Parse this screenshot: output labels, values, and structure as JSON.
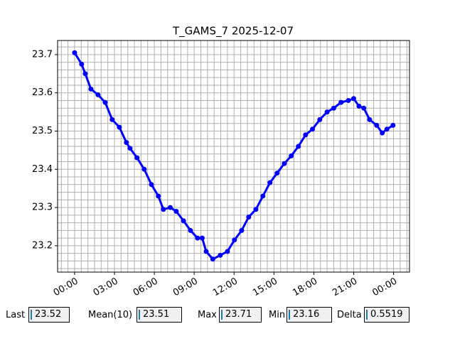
{
  "chart_data": {
    "type": "line",
    "title": "T_GAMS_7 2025-12-07",
    "x": [
      0,
      0.53,
      0.8,
      1.23,
      1.76,
      2.3,
      2.83,
      3.37,
      3.9,
      4.17,
      4.7,
      5.24,
      5.78,
      6.3,
      6.68,
      7.2,
      7.65,
      8.2,
      8.72,
      9.25,
      9.6,
      9.9,
      10.4,
      10.96,
      11.5,
      12.03,
      12.57,
      13.1,
      13.64,
      14.17,
      14.7,
      15.24,
      15.78,
      16.3,
      16.84,
      17.38,
      17.9,
      18.45,
      19,
      19.5,
      20.05,
      20.6,
      21,
      21.4,
      21.76,
      22.2,
      22.73,
      23.15,
      23.5,
      23.96
    ],
    "series": [
      {
        "name": "T_GAMS_7",
        "color": "#0000ff",
        "values": [
          23.705,
          23.675,
          23.65,
          23.61,
          23.595,
          23.575,
          23.53,
          23.51,
          23.47,
          23.455,
          23.43,
          23.4,
          23.36,
          23.33,
          23.295,
          23.3,
          23.29,
          23.265,
          23.24,
          23.22,
          23.22,
          23.185,
          23.165,
          23.175,
          23.185,
          23.215,
          23.24,
          23.275,
          23.295,
          23.33,
          23.365,
          23.39,
          23.415,
          23.435,
          23.46,
          23.49,
          23.505,
          23.53,
          23.55,
          23.56,
          23.575,
          23.58,
          23.585,
          23.565,
          23.56,
          23.53,
          23.515,
          23.495,
          23.505,
          23.515
        ]
      }
    ],
    "xlim": [
      -1.28,
      25.2
    ],
    "ylim": [
      23.131,
      23.737
    ],
    "xticks": [
      {
        "value": 0,
        "label": "00:00"
      },
      {
        "value": 3,
        "label": "03:00"
      },
      {
        "value": 6,
        "label": "06:00"
      },
      {
        "value": 9,
        "label": "09:00"
      },
      {
        "value": 12,
        "label": "12:00"
      },
      {
        "value": 15,
        "label": "15:00"
      },
      {
        "value": 18,
        "label": "18:00"
      },
      {
        "value": 21,
        "label": "21:00"
      },
      {
        "value": 24,
        "label": "00:00"
      }
    ],
    "yticks": [
      23.2,
      23.3,
      23.4,
      23.5,
      23.6,
      23.7
    ],
    "grid": true,
    "minor_grid": {
      "x": 0.5,
      "y": 0.02
    }
  },
  "widgets": [
    {
      "label": "Last",
      "value": 23.52
    },
    {
      "label": "Mean(10)",
      "value": 23.51
    },
    {
      "label": "Max",
      "value": 23.71
    },
    {
      "label": "Min",
      "value": 23.16
    },
    {
      "label": "Delta",
      "value": 0.5519
    }
  ]
}
